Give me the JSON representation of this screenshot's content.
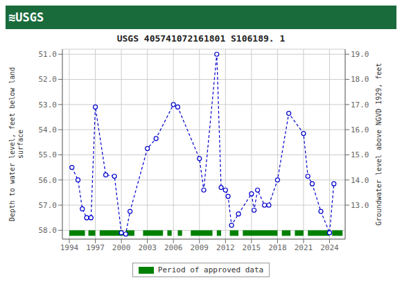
{
  "chart_data": {
    "type": "line",
    "title": "USGS 405741072161801 S106189. 1",
    "annotations": [
      {
        "text": "≋USGS",
        "color": "white",
        "background": "#1a6b3c"
      }
    ],
    "y_label": "Depth to water level, feet below land\nsurface",
    "y2_label": "Groundwater level above NGVD 1929, feet",
    "x": [
      1994.3,
      1995.0,
      1995.5,
      1996.0,
      1996.5,
      1997.0,
      1998.2,
      1999.2,
      2000.0,
      2000.5,
      2001.0,
      2003.0,
      2004.0,
      2006.0,
      2006.5,
      2009.0,
      2009.5,
      2011.0,
      2011.5,
      2012.0,
      2012.3,
      2012.7,
      2013.5,
      2015.0,
      2015.3,
      2015.7,
      2016.5,
      2017.0,
      2018.0,
      2019.3,
      2021.0,
      2021.5,
      2022.0,
      2023.0,
      2024.0,
      2024.5
    ],
    "values": [
      55.5,
      56.0,
      57.15,
      57.5,
      57.5,
      53.1,
      55.8,
      55.85,
      58.1,
      58.15,
      57.25,
      54.75,
      54.35,
      53.0,
      53.1,
      55.15,
      56.4,
      51.0,
      56.3,
      56.4,
      56.65,
      57.8,
      57.35,
      56.55,
      57.2,
      56.4,
      57.0,
      57.0,
      56.0,
      53.35,
      54.15,
      55.85,
      56.15,
      57.25,
      58.1,
      56.15
    ],
    "color": "#0000cc",
    "line_style": "dashed",
    "marker": "open circle",
    "xlim": [
      1993.2,
      2025.8
    ],
    "xticks": [
      1994,
      1997,
      2000,
      2003,
      2006,
      2009,
      2012,
      2015,
      2018,
      2021,
      2024
    ],
    "ylim": [
      58.35,
      50.8
    ],
    "yticks": [
      {
        "value": 51.0,
        "label": "51.0"
      },
      {
        "value": 52.0,
        "label": "52.0"
      },
      {
        "value": 53.0,
        "label": "53.0"
      },
      {
        "value": 54.0,
        "label": "54.0"
      },
      {
        "value": 55.0,
        "label": "55.0"
      },
      {
        "value": 56.0,
        "label": "56.0"
      },
      {
        "value": 57.0,
        "label": "57.0"
      },
      {
        "value": 58.0,
        "label": "58.0"
      }
    ],
    "y2lim": [
      11.65,
      19.2
    ],
    "y2ticks": [
      {
        "value": 13.0,
        "label": "13.0"
      },
      {
        "value": 14.0,
        "label": "14.0"
      },
      {
        "value": 15.0,
        "label": "15.0"
      },
      {
        "value": 16.0,
        "label": "16.0"
      },
      {
        "value": 17.0,
        "label": "17.0"
      },
      {
        "value": 18.0,
        "label": "18.0"
      },
      {
        "value": 19.0,
        "label": "19.0"
      }
    ],
    "grid": true,
    "legend": "bottom",
    "approved_periods": {
      "name": "Period of approved data",
      "color": "#008000",
      "band": [
        58.0,
        58.22
      ],
      "segments": [
        [
          1994.0,
          1995.8
        ],
        [
          1996.2,
          1997.0
        ],
        [
          1997.5,
          2000.2
        ],
        [
          2000.5,
          2001.5
        ],
        [
          2002.5,
          2004.8
        ],
        [
          2005.3,
          2005.8
        ],
        [
          2006.5,
          2007.0
        ],
        [
          2008.0,
          2010.5
        ],
        [
          2011.0,
          2011.5
        ],
        [
          2012.5,
          2013.5
        ],
        [
          2014.0,
          2018.0
        ],
        [
          2018.5,
          2019.5
        ],
        [
          2020.0,
          2021.0
        ],
        [
          2021.5,
          2024.0
        ],
        [
          2024.3,
          2025.5
        ]
      ]
    }
  }
}
